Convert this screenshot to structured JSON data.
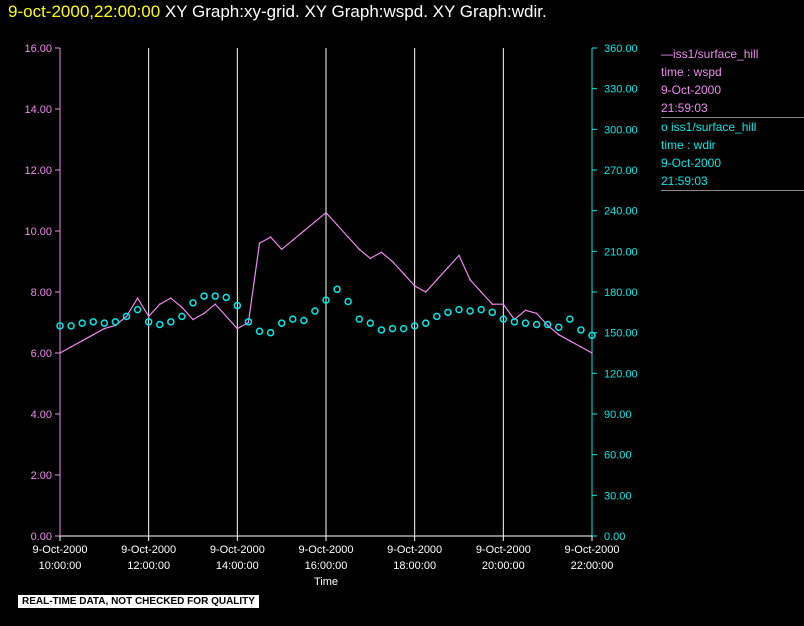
{
  "header": {
    "timestamp": "9-oct-2000,22:00:00",
    "graphs": [
      "XY Graph:xy-grid.",
      "XY Graph:wspd.",
      "XY Graph:wdir."
    ]
  },
  "legend": {
    "series1": {
      "line1": "iss1/surface_hill",
      "line2": "time : wspd",
      "line3": "9-Oct-2000",
      "line4": "21:59:03"
    },
    "series2": {
      "line1": "iss1/surface_hill",
      "line2": "time : wdir",
      "line3": "9-Oct-2000",
      "line4": "21:59:03"
    }
  },
  "footer": {
    "note": "REAL-TIME DATA, NOT CHECKED FOR QUALITY"
  },
  "colors": {
    "wspd": "#ee88ee",
    "wdir": "#00e8e8",
    "title_time": "#ffff00",
    "grid": "#ffffff"
  },
  "chart_data": {
    "type": "line",
    "xlabel": "Time",
    "x_ticks": [
      {
        "date": "9-Oct-2000",
        "time": "10:00:00",
        "hour": 10
      },
      {
        "date": "9-Oct-2000",
        "time": "12:00:00",
        "hour": 12
      },
      {
        "date": "9-Oct-2000",
        "time": "14:00:00",
        "hour": 14
      },
      {
        "date": "9-Oct-2000",
        "time": "16:00:00",
        "hour": 16
      },
      {
        "date": "9-Oct-2000",
        "time": "18:00:00",
        "hour": 18
      },
      {
        "date": "9-Oct-2000",
        "time": "20:00:00",
        "hour": 20
      },
      {
        "date": "9-Oct-2000",
        "time": "22:00:00",
        "hour": 22
      }
    ],
    "xlim": [
      10,
      22
    ],
    "y_left": {
      "ylim": [
        0,
        16
      ],
      "ticks": [
        "0.00",
        "2.00",
        "4.00",
        "6.00",
        "8.00",
        "10.00",
        "12.00",
        "14.00",
        "16.00"
      ]
    },
    "y_right": {
      "ylim": [
        0,
        360
      ],
      "ticks": [
        "0.00",
        "30.00",
        "60.00",
        "90.00",
        "120.00",
        "150.00",
        "180.00",
        "210.00",
        "240.00",
        "270.00",
        "300.00",
        "330.00",
        "360.00"
      ]
    },
    "grid": "vertical lines at x ticks",
    "legend_position": "right",
    "series": [
      {
        "name": "iss1/surface_hill time : wspd",
        "axis": "left",
        "style": "line",
        "x": [
          10.0,
          10.25,
          10.5,
          10.75,
          11.0,
          11.25,
          11.5,
          11.75,
          12.0,
          12.25,
          12.5,
          12.75,
          13.0,
          13.25,
          13.5,
          13.75,
          14.0,
          14.25,
          14.5,
          14.75,
          15.0,
          15.25,
          15.5,
          15.75,
          16.0,
          16.25,
          16.5,
          16.75,
          17.0,
          17.25,
          17.5,
          17.75,
          18.0,
          18.25,
          18.5,
          18.75,
          19.0,
          19.25,
          19.5,
          19.75,
          20.0,
          20.25,
          20.5,
          20.75,
          21.0,
          21.25,
          21.5,
          21.75,
          22.0
        ],
        "y": [
          6.0,
          6.2,
          6.4,
          6.6,
          6.8,
          6.9,
          7.2,
          7.8,
          7.2,
          7.6,
          7.8,
          7.5,
          7.1,
          7.3,
          7.6,
          7.2,
          6.8,
          7.0,
          9.6,
          9.8,
          9.4,
          9.7,
          10.0,
          10.3,
          10.6,
          10.2,
          9.8,
          9.4,
          9.1,
          9.3,
          9.0,
          8.6,
          8.2,
          8.0,
          8.4,
          8.8,
          9.2,
          8.4,
          8.0,
          7.6,
          7.6,
          7.1,
          7.4,
          7.3,
          6.9,
          6.6,
          6.4,
          6.2,
          6.0
        ]
      },
      {
        "name": "iss1/surface_hill time : wdir",
        "axis": "right",
        "style": "circles",
        "x": [
          10.0,
          10.25,
          10.5,
          10.75,
          11.0,
          11.25,
          11.5,
          11.75,
          12.0,
          12.25,
          12.5,
          12.75,
          13.0,
          13.25,
          13.5,
          13.75,
          14.0,
          14.25,
          14.5,
          14.75,
          15.0,
          15.25,
          15.5,
          15.75,
          16.0,
          16.25,
          16.5,
          16.75,
          17.0,
          17.25,
          17.5,
          17.75,
          18.0,
          18.25,
          18.5,
          18.75,
          19.0,
          19.25,
          19.5,
          19.75,
          20.0,
          20.25,
          20.5,
          20.75,
          21.0,
          21.25,
          21.5,
          21.75,
          22.0
        ],
        "y": [
          155,
          155,
          157,
          158,
          157,
          158,
          162,
          167,
          158,
          156,
          158,
          162,
          172,
          177,
          177,
          176,
          170,
          158,
          151,
          150,
          157,
          160,
          159,
          166,
          174,
          182,
          173,
          160,
          157,
          152,
          153,
          153,
          155,
          157,
          162,
          165,
          167,
          166,
          167,
          165,
          160,
          158,
          157,
          156,
          156,
          154,
          160,
          152,
          148
        ]
      }
    ]
  }
}
